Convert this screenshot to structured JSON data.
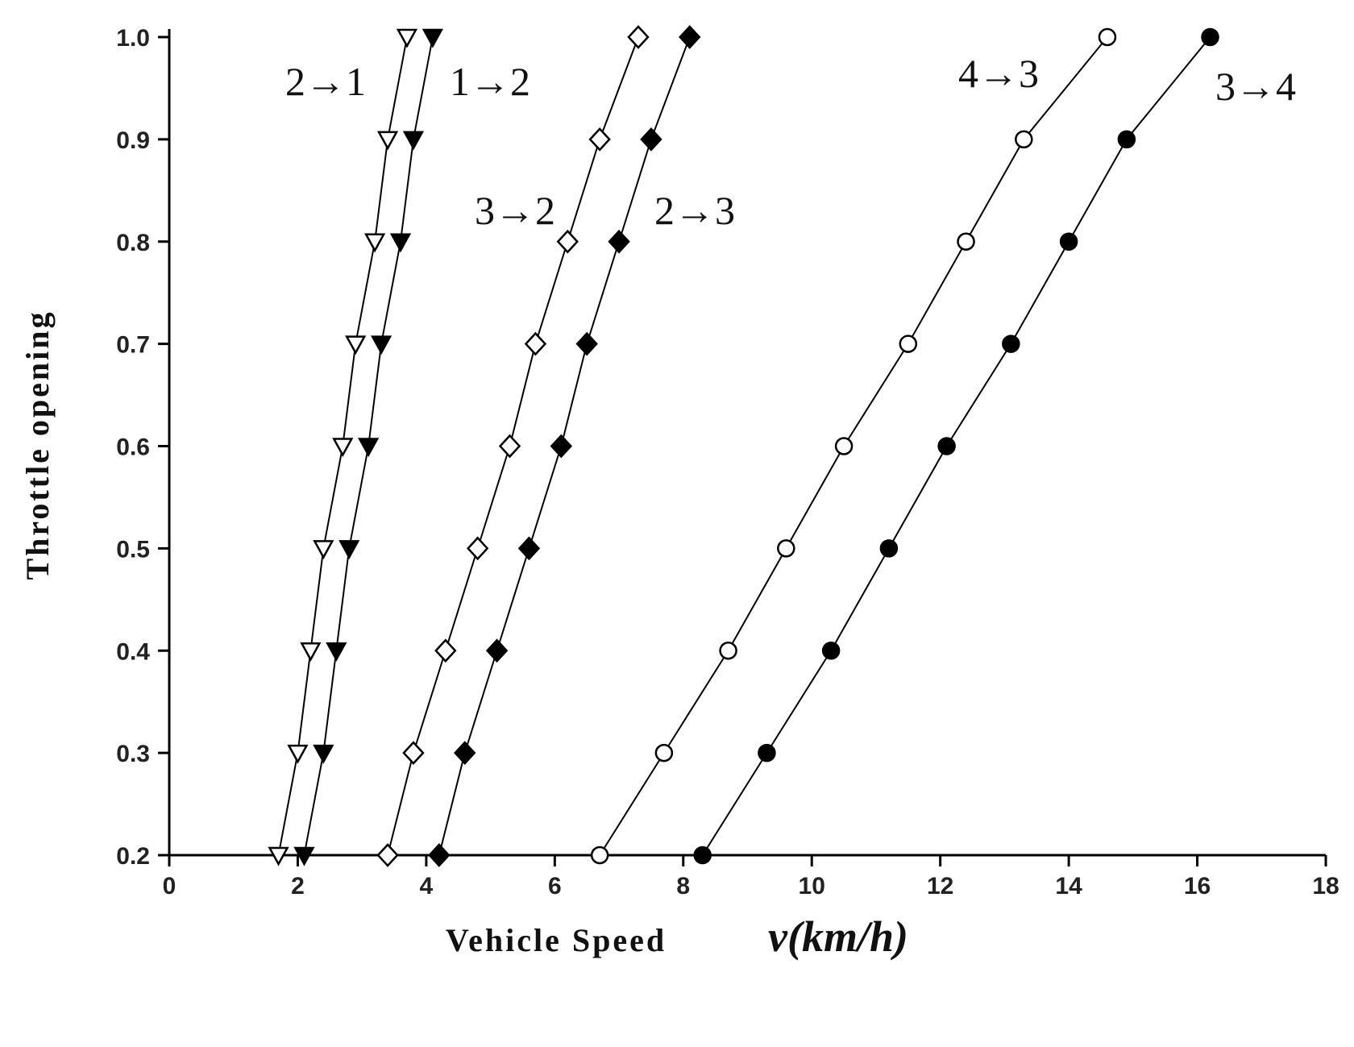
{
  "chart_data": {
    "type": "line",
    "x_label": "Vehicle Speed",
    "x_label_unit": "v(km/h)",
    "y_label": "Throttle opening",
    "y": [
      0.2,
      0.3,
      0.4,
      0.5,
      0.6,
      0.7,
      0.8,
      0.9,
      1.0
    ],
    "series": [
      {
        "name": "2→1",
        "color": "#000000",
        "marker": "triangle-down",
        "filled": false,
        "x": [
          1.7,
          2.0,
          2.2,
          2.4,
          2.7,
          2.9,
          3.2,
          3.4,
          3.7
        ]
      },
      {
        "name": "1→2",
        "color": "#000000",
        "marker": "triangle-down",
        "filled": true,
        "x": [
          2.1,
          2.4,
          2.6,
          2.8,
          3.1,
          3.3,
          3.6,
          3.8,
          4.1
        ]
      },
      {
        "name": "3→2",
        "color": "#000000",
        "marker": "diamond",
        "filled": false,
        "x": [
          3.4,
          3.8,
          4.3,
          4.8,
          5.3,
          5.7,
          6.2,
          6.7,
          7.3
        ]
      },
      {
        "name": "2→3",
        "color": "#000000",
        "marker": "diamond",
        "filled": true,
        "x": [
          4.2,
          4.6,
          5.1,
          5.6,
          6.1,
          6.5,
          7.0,
          7.5,
          8.1
        ]
      },
      {
        "name": "4→3",
        "color": "#000000",
        "marker": "circle",
        "filled": false,
        "x": [
          6.7,
          7.7,
          8.7,
          9.6,
          10.5,
          11.5,
          12.4,
          13.3,
          14.6
        ]
      },
      {
        "name": "3→4",
        "color": "#000000",
        "marker": "circle",
        "filled": true,
        "x": [
          8.3,
          9.3,
          10.3,
          11.2,
          12.1,
          13.1,
          14.0,
          14.9,
          16.2
        ]
      }
    ],
    "xlim": [
      0,
      18
    ],
    "xticks": [
      0,
      2,
      4,
      6,
      8,
      10,
      12,
      14,
      16,
      18
    ],
    "ylim": [
      0.2,
      1.0
    ],
    "yticks": [
      0.2,
      0.3,
      0.4,
      0.5,
      0.6,
      0.7,
      0.8,
      0.9,
      {
        "value": 1.0,
        "label": "1.0"
      }
    ]
  }
}
